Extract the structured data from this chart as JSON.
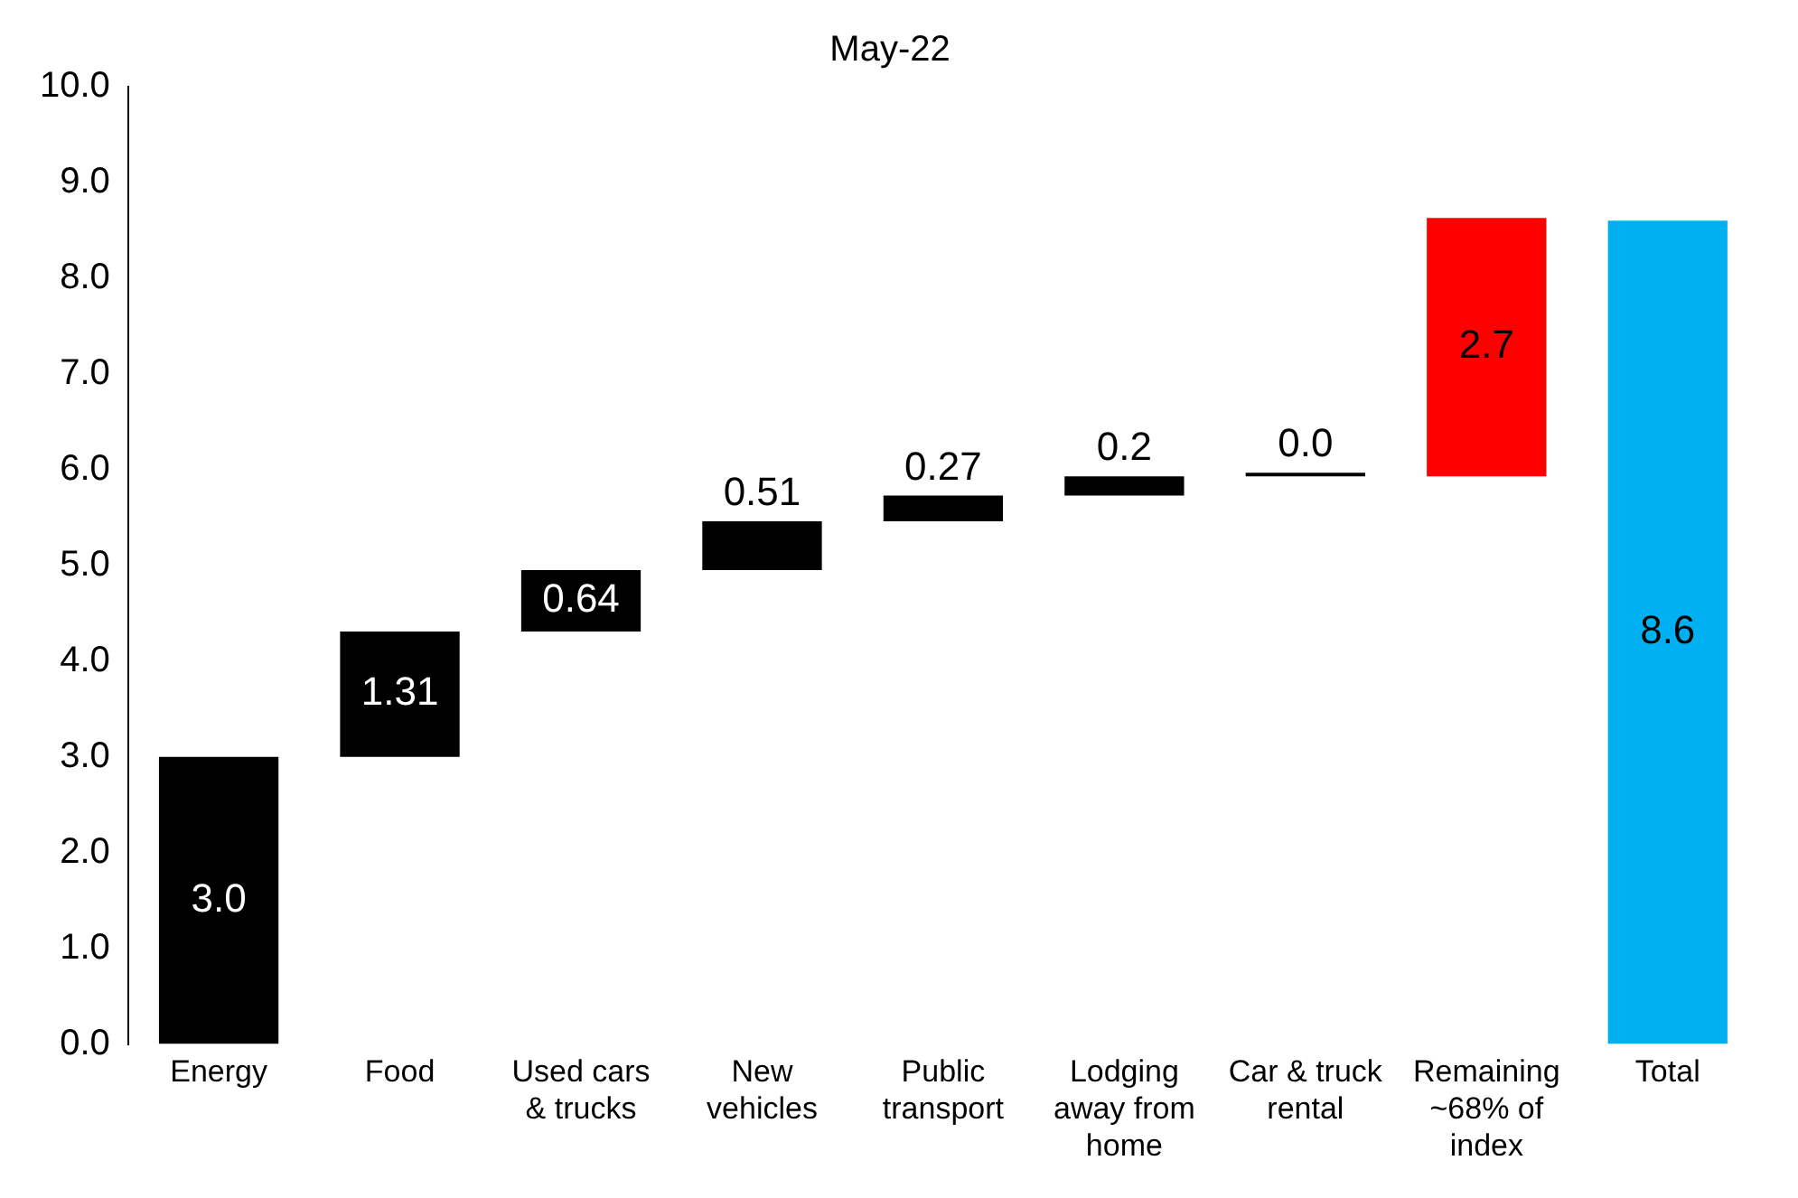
{
  "chart_data": {
    "type": "bar",
    "title": "May-22",
    "categories": [
      "Energy",
      "Food",
      "Used cars & trucks",
      "New vehicles",
      "Public transport",
      "Lodging away from home",
      "Car & truck rental",
      "Remaining ~68% of index",
      "Total"
    ],
    "values": [
      3.0,
      1.31,
      0.64,
      0.51,
      0.27,
      0.2,
      0.0,
      2.7,
      8.6
    ],
    "base": [
      0,
      3.0,
      4.31,
      4.95,
      5.46,
      5.73,
      5.93,
      5.93,
      0
    ],
    "colors": [
      "#000000",
      "#000000",
      "#000000",
      "#000000",
      "#000000",
      "#000000",
      "#000000",
      "#ff0000",
      "#00b0f0"
    ],
    "value_labels": [
      "3.0",
      "1.31",
      "0.64",
      "0.51",
      "0.27",
      "0.2",
      "0.0",
      "2.7",
      "8.6"
    ],
    "ylim": [
      0,
      10
    ],
    "yticks": [
      {
        "value": 0,
        "label": "0.0"
      },
      {
        "value": 1,
        "label": "1.0"
      },
      {
        "value": 2,
        "label": "2.0"
      },
      {
        "value": 3,
        "label": "3.0"
      },
      {
        "value": 4,
        "label": "4.0"
      },
      {
        "value": 5,
        "label": "5.0"
      },
      {
        "value": 6,
        "label": "6.0"
      },
      {
        "value": 7,
        "label": "7.0"
      },
      {
        "value": 8,
        "label": "8.0"
      },
      {
        "value": 9,
        "label": "9.0"
      },
      {
        "value": 10,
        "label": "10.0"
      }
    ],
    "grid": false,
    "legend": false
  }
}
